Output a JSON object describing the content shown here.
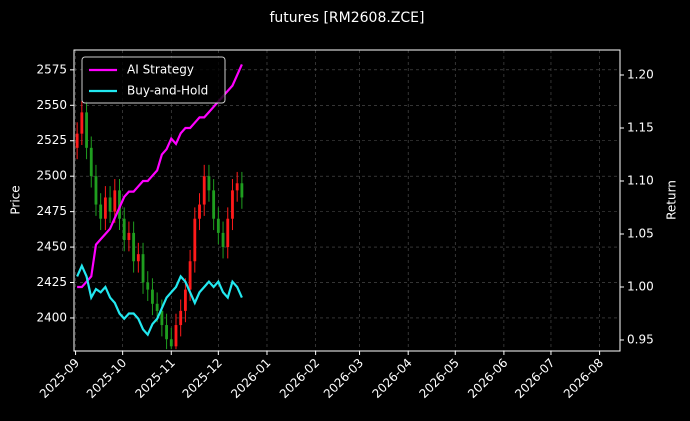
{
  "chart_data": {
    "type": "candlestick",
    "title": "futures [RM2608.ZCE]",
    "ylabel": "Price",
    "y2label": "Return",
    "x": [
      1,
      4,
      7,
      10,
      13,
      16,
      19,
      22,
      25,
      28,
      31,
      34,
      37,
      40,
      43,
      46,
      49,
      52,
      55,
      58,
      61,
      64,
      67,
      70,
      73,
      76,
      79,
      82,
      85,
      88,
      91,
      94,
      97,
      100,
      103,
      106
    ],
    "open": [
      2520,
      2530,
      2545,
      2520,
      2500,
      2480,
      2470,
      2485,
      2475,
      2490,
      2470,
      2455,
      2460,
      2440,
      2445,
      2425,
      2420,
      2410,
      2405,
      2395,
      2385,
      2380,
      2395,
      2405,
      2420,
      2440,
      2470,
      2480,
      2500,
      2490,
      2470,
      2460,
      2450,
      2470,
      2490,
      2495
    ],
    "high": [
      2538,
      2553,
      2553,
      2528,
      2508,
      2488,
      2493,
      2493,
      2498,
      2498,
      2478,
      2468,
      2468,
      2453,
      2453,
      2433,
      2428,
      2418,
      2413,
      2403,
      2393,
      2403,
      2413,
      2428,
      2448,
      2478,
      2488,
      2508,
      2508,
      2498,
      2478,
      2468,
      2478,
      2498,
      2503,
      2503
    ],
    "low": [
      2512,
      2522,
      2512,
      2492,
      2472,
      2462,
      2462,
      2467,
      2467,
      2462,
      2447,
      2447,
      2432,
      2432,
      2417,
      2412,
      2402,
      2397,
      2387,
      2378,
      2378,
      2378,
      2387,
      2397,
      2412,
      2432,
      2462,
      2472,
      2482,
      2462,
      2452,
      2442,
      2442,
      2462,
      2482,
      2477
    ],
    "close": [
      2530,
      2545,
      2520,
      2500,
      2480,
      2470,
      2485,
      2475,
      2490,
      2470,
      2455,
      2460,
      2440,
      2445,
      2425,
      2420,
      2410,
      2405,
      2395,
      2385,
      2380,
      2395,
      2405,
      2420,
      2440,
      2470,
      2480,
      2500,
      2490,
      2470,
      2460,
      2450,
      2470,
      2490,
      2495,
      2485
    ],
    "up_color": "#ff1a1a",
    "down_color": "#1f9e1f",
    "series": [
      {
        "name": "AI Strategy",
        "color": "#ff00ff",
        "axis": "y2",
        "values": [
          1.0,
          1.0,
          1.005,
          1.01,
          1.04,
          1.045,
          1.05,
          1.055,
          1.065,
          1.075,
          1.085,
          1.09,
          1.09,
          1.095,
          1.1,
          1.1,
          1.105,
          1.11,
          1.125,
          1.13,
          1.14,
          1.135,
          1.145,
          1.15,
          1.15,
          1.155,
          1.16,
          1.16,
          1.165,
          1.17,
          1.175,
          1.18,
          1.185,
          1.19,
          1.2,
          1.21
        ]
      },
      {
        "name": "Buy-and-Hold",
        "color": "#22e8f0",
        "axis": "y2",
        "values": [
          1.01,
          1.02,
          1.01,
          0.99,
          0.998,
          0.995,
          1.0,
          0.99,
          0.985,
          0.975,
          0.97,
          0.975,
          0.975,
          0.97,
          0.96,
          0.955,
          0.965,
          0.97,
          0.98,
          0.99,
          0.995,
          1.0,
          1.01,
          1.005,
          0.995,
          0.985,
          0.995,
          1.0,
          1.005,
          1.0,
          1.005,
          0.995,
          0.99,
          1.005,
          1.0,
          0.99
        ]
      }
    ],
    "xlim": [
      -1,
      347
    ],
    "xticks": [
      {
        "value": 0,
        "label": "2025-09"
      },
      {
        "value": 30,
        "label": "2025-10"
      },
      {
        "value": 61,
        "label": "2025-11"
      },
      {
        "value": 91,
        "label": "2025-12"
      },
      {
        "value": 122,
        "label": "2026-01"
      },
      {
        "value": 153,
        "label": "2026-02"
      },
      {
        "value": 181,
        "label": "2026-03"
      },
      {
        "value": 212,
        "label": "2026-04"
      },
      {
        "value": 242,
        "label": "2026-05"
      },
      {
        "value": 273,
        "label": "2026-06"
      },
      {
        "value": 303,
        "label": "2026-07"
      },
      {
        "value": 334,
        "label": "2026-08"
      }
    ],
    "ylim": [
      2376.7,
      2589
    ],
    "yticks": [
      2400,
      2425,
      2450,
      2475,
      2500,
      2525,
      2550,
      2575
    ],
    "y2lim": [
      0.9396,
      1.2236
    ],
    "y2ticks": [
      0.95,
      {
        "value": 1,
        "label": "1.00"
      },
      1.05,
      {
        "value": 1.1,
        "label": "1.10"
      },
      1.15,
      {
        "value": 1.2,
        "label": "1.20"
      }
    ],
    "grid": true,
    "legend": "upper left"
  }
}
